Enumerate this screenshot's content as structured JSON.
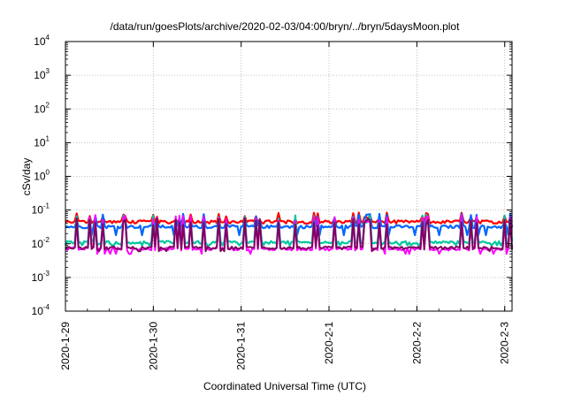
{
  "chart_data": {
    "type": "line",
    "title": "/data/run/goesPlots/archive/2020-02-03/04:00/bryn/../bryn/5daysMoon.plot",
    "xlabel": "Coordinated Universal Time (UTC)",
    "ylabel": "cSv/day",
    "yscale": "log",
    "ylim": [
      0.0001,
      10000
    ],
    "xlim": [
      "2020-01-29 00:00",
      "2020-02-03 02:00"
    ],
    "grid": true,
    "legend": "none",
    "y_ticks": [
      {
        "value": 0.0001,
        "base": "10",
        "exp": "-4"
      },
      {
        "value": 0.001,
        "base": "10",
        "exp": "-3"
      },
      {
        "value": 0.01,
        "base": "10",
        "exp": "-2"
      },
      {
        "value": 0.1,
        "base": "10",
        "exp": "-1"
      },
      {
        "value": 1,
        "base": "10",
        "exp": "0"
      },
      {
        "value": 10,
        "base": "10",
        "exp": "1"
      },
      {
        "value": 100,
        "base": "10",
        "exp": "2"
      },
      {
        "value": 1000,
        "base": "10",
        "exp": "3"
      },
      {
        "value": 10000,
        "base": "10",
        "exp": "4"
      }
    ],
    "x_ticks": [
      "2020-1-29",
      "2020-1-30",
      "2020-1-31",
      "2020-2-1",
      "2020-2-2",
      "2020-2-3"
    ],
    "series": [
      {
        "color": "#ff0000",
        "base": 0.045,
        "spike": 0.07,
        "low": 0.04
      },
      {
        "color": "#0066ff",
        "base": 0.032,
        "spike": 0.065,
        "low": 0.018
      },
      {
        "color": "#00c8a0",
        "base": 0.011,
        "spike": 0.06,
        "low": 0.009
      },
      {
        "color": "#ff00ff",
        "base": 0.007,
        "spike": 0.06,
        "low": 0.005
      },
      {
        "color": "#800060",
        "base": 0.0075,
        "spike": 0.05,
        "low": 0.006
      }
    ]
  }
}
